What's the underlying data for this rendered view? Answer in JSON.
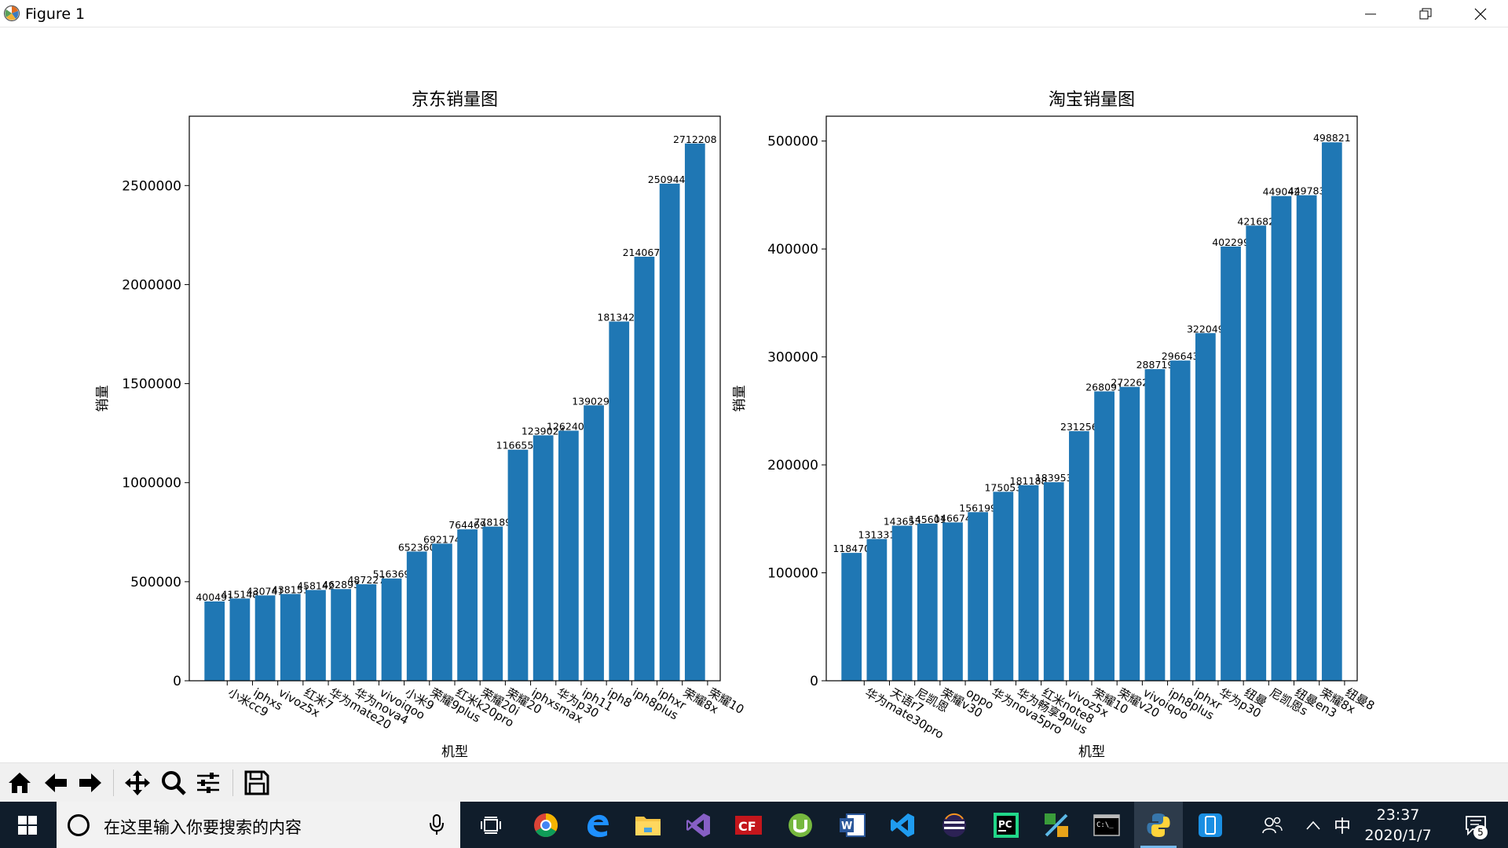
{
  "window": {
    "title": "Figure 1"
  },
  "chart_data": [
    {
      "type": "bar",
      "title": "京东销量图",
      "xlabel": "机型",
      "ylabel": "销量",
      "ylim": [
        0,
        2850000
      ],
      "yticks": [
        0,
        500000,
        1000000,
        1500000,
        2000000,
        2500000
      ],
      "categories": [
        "小米cc9",
        "iphxs",
        "vivoz5x",
        "红米7",
        "华为mate20",
        "华为nova4",
        "vivoiqoo",
        "小米9",
        "荣耀9plus",
        "红米k20pro",
        "荣耀20i",
        "荣耀20",
        "iphxsmax",
        "华为p30",
        "iph11",
        "iph8",
        "iph8plus",
        "iphxr",
        "荣耀8x",
        "荣耀10"
      ],
      "values": [
        400491,
        415148,
        430741,
        438151,
        458142,
        462893,
        487227,
        516369,
        652360,
        692174,
        764469,
        778189,
        1166556,
        1239024,
        1262403,
        1390297,
        1813427,
        2140674,
        2509447,
        2712208
      ],
      "value_labels": [
        "400491",
        "415148",
        "430741",
        "438151",
        "458142",
        "462893",
        "487227",
        "516369",
        "652360",
        "692174",
        "764469",
        "778189",
        "1166556",
        "1239024",
        "1262403",
        "1390297",
        "1813427",
        "2140674",
        "2509447",
        "2712208"
      ]
    },
    {
      "type": "bar",
      "title": "淘宝销量图",
      "xlabel": "机型",
      "ylabel": "销量",
      "ylim": [
        0,
        523000
      ],
      "yticks": [
        0,
        100000,
        200000,
        300000,
        400000,
        500000
      ],
      "categories": [
        "华为mate30pro",
        "天语r7",
        "尼凯恩",
        "荣耀v30",
        "oppo",
        "华为nova5pro",
        "华为畅享9plus",
        "红米note8",
        "vivoz5x",
        "荣耀10",
        "荣耀v20",
        "vivoiqoo",
        "iph8plus",
        "iphxr",
        "华为p30",
        "纽曼",
        "尼凯恩s",
        "纽曼en3",
        "荣耀8x",
        "纽曼8"
      ],
      "values": [
        118470,
        131331,
        143653,
        145601,
        146674,
        156199,
        175053,
        181188,
        183953,
        231256,
        268091,
        272262,
        288719,
        296643,
        322049,
        402299,
        421682,
        449042,
        449783,
        498821
      ],
      "value_labels": [
        "118470",
        "131331",
        "143653",
        "145601",
        "146674",
        "156199",
        "175053",
        "181188",
        "183953",
        "231256",
        "268091",
        "272262",
        "288719",
        "296643",
        "322049",
        "402299",
        "421682",
        "449042",
        "449783",
        "498821"
      ]
    }
  ],
  "colors": {
    "bar": "#1f77b4",
    "taskbar": "#101d2b"
  },
  "toolbar": {
    "icons": [
      "home-icon",
      "back-arrow-icon",
      "forward-arrow-icon",
      "pan-icon",
      "zoom-icon",
      "configure-subplots-icon",
      "save-icon"
    ]
  },
  "taskbar": {
    "search_placeholder": "在这里输入你要搜索的内容",
    "ime_label": "中",
    "time": "23:37",
    "date": "2020/1/7",
    "notification_count": "5"
  }
}
